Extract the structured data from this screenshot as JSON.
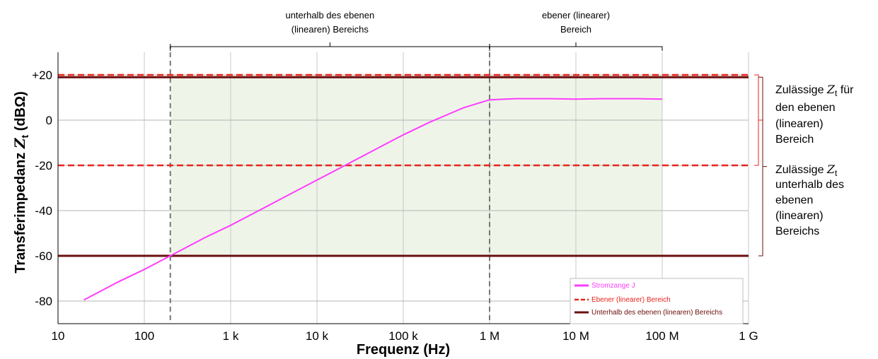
{
  "chart_data": {
    "type": "line",
    "xscale": "log",
    "xlim": [
      10,
      1000000000
    ],
    "ylim": [
      -90,
      30
    ],
    "xlabel": "Frequenz (Hz)",
    "ylabel_main": "Transferimpedanz ",
    "ylabel_symbol": "Z",
    "ylabel_sub": "t",
    "ylabel_unit": " (dBΩ)",
    "grid": true,
    "x_ticks": [
      {
        "value": 10,
        "label": "10"
      },
      {
        "value": 100,
        "label": "100"
      },
      {
        "value": 1000,
        "label": "1 k"
      },
      {
        "value": 10000,
        "label": "10 k"
      },
      {
        "value": 100000,
        "label": "100 k"
      },
      {
        "value": 1000000,
        "label": "1 M"
      },
      {
        "value": 10000000,
        "label": "10 M"
      },
      {
        "value": 100000000,
        "label": "100 M"
      },
      {
        "value": 1000000000,
        "label": "1 G"
      }
    ],
    "y_ticks": [
      {
        "value": 20,
        "label": "+20"
      },
      {
        "value": 0,
        "label": "0"
      },
      {
        "value": -20,
        "label": "-20"
      },
      {
        "value": -40,
        "label": "-40"
      },
      {
        "value": -60,
        "label": "-60"
      },
      {
        "value": -80,
        "label": "-80"
      }
    ],
    "series": [
      {
        "name": "Stromzange J",
        "color": "#ff3cff",
        "x": [
          20,
          50,
          100,
          200,
          500,
          1000,
          2000,
          5000,
          10000,
          20000,
          50000,
          100000,
          200000,
          500000,
          1000000,
          2000000,
          5000000,
          10000000,
          20000000,
          50000000,
          100000000
        ],
        "y": [
          -79.5,
          -71.5,
          -66,
          -60,
          -52,
          -46.5,
          -40.5,
          -32.5,
          -26.5,
          -20.5,
          -12.5,
          -6.5,
          -1,
          5.5,
          9,
          9.5,
          9.5,
          9.3,
          9.5,
          9.5,
          9.3
        ]
      }
    ],
    "reference_lines": [
      {
        "name": "Ebener (linearer) Bereich",
        "color": "#e8241c",
        "style": "dashed",
        "y": [
          20,
          -20
        ]
      },
      {
        "name": "Unterhalb des ebenen (linearen) Bereichs",
        "color": "#6b0f0f",
        "style": "solid",
        "y": [
          19,
          -60
        ]
      }
    ],
    "region_dividers": [
      200,
      1000000
    ],
    "shaded_region": {
      "x": [
        200,
        100000000
      ],
      "y": [
        -60,
        20
      ],
      "color": "#eef5e8"
    },
    "legend": {
      "position": "bottom-right",
      "entries": [
        {
          "label": "Stromzange J",
          "color": "#ff3cff",
          "style": "solid"
        },
        {
          "label": "Ebener (linearer) Bereich",
          "color": "#e8241c",
          "style": "dashed"
        },
        {
          "label": "Unterhalb des ebenen (linearen) Bereichs",
          "color": "#6b0f0f",
          "style": "solid"
        }
      ]
    },
    "top_annotations": [
      {
        "lines": [
          "unterhalb des ebenen",
          "(linearen) Bereichs"
        ],
        "x_range": [
          200,
          1000000
        ]
      },
      {
        "lines": [
          "ebener (linearer)",
          "Bereich"
        ],
        "x_range": [
          1000000,
          100000000
        ]
      }
    ],
    "side_annotations": [
      {
        "lines": [
          "Zulässige Zt für",
          "den ebenen",
          "(linearen)",
          "Bereich"
        ],
        "parts": [
          [
            "Zulässige ",
            "Z",
            "t",
            " für"
          ],
          [
            "den ebenen"
          ],
          [
            "(linearen)"
          ],
          [
            "Bereich"
          ]
        ],
        "color": "#e8241c",
        "y_range": [
          -20,
          20
        ]
      },
      {
        "lines": [
          "Zulässige Zt",
          "unterhalb des",
          "ebenen",
          "(linearen)",
          "Bereichs"
        ],
        "parts": [
          [
            "Zulässige ",
            "Z",
            "t"
          ],
          [
            "unterhalb des"
          ],
          [
            "ebenen"
          ],
          [
            "(linearen)"
          ],
          [
            "Bereichs"
          ]
        ],
        "color": "#6b0f0f",
        "y_range": [
          -60,
          19
        ]
      }
    ]
  }
}
